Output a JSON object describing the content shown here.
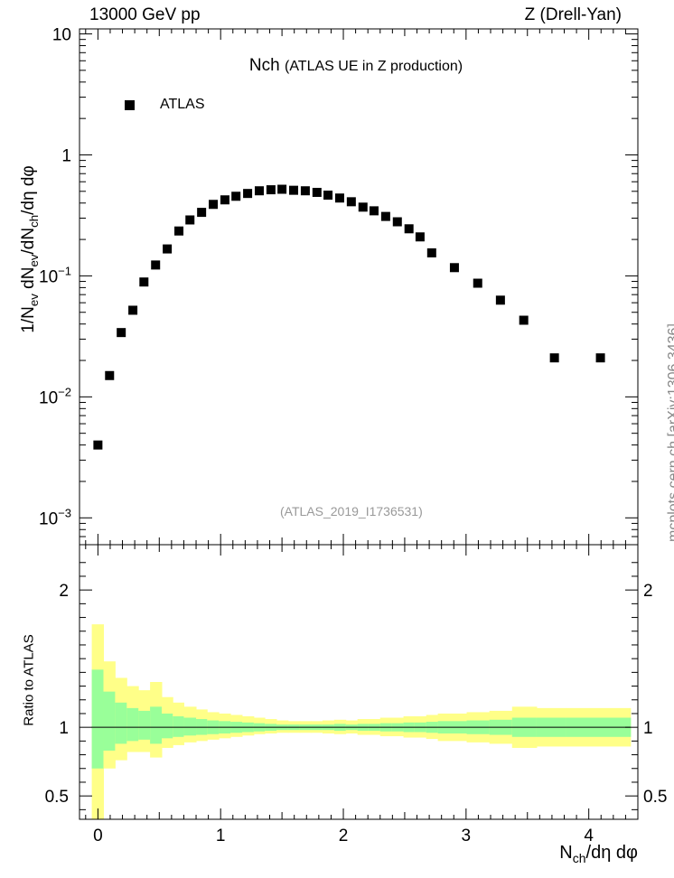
{
  "header": {
    "energy": "13000 GeV pp",
    "process": "Z (Drell-Yan)"
  },
  "title": {
    "main": "Nch",
    "sub": "(ATLAS UE in Z production)"
  },
  "legend": {
    "label": "ATLAS"
  },
  "analysis_id": "(ATLAS_2019_I1736531)",
  "side_label": "mcplots.cern.ch [arXiv:1306.3436]",
  "axes": {
    "ylabel_main": "1/N_ev dN_ev/dN_ch/dη dφ",
    "ylabel_ratio": "Ratio to ATLAS",
    "xlabel": "N_ch/dη dφ"
  },
  "chart_data": [
    {
      "type": "scatter",
      "panel": "main",
      "series": [
        {
          "name": "ATLAS",
          "x": [
            0.0,
            0.095,
            0.19,
            0.285,
            0.375,
            0.47,
            0.565,
            0.66,
            0.75,
            0.845,
            0.94,
            1.035,
            1.125,
            1.22,
            1.315,
            1.41,
            1.5,
            1.595,
            1.69,
            1.785,
            1.875,
            1.97,
            2.065,
            2.16,
            2.25,
            2.345,
            2.44,
            2.535,
            2.625,
            2.72,
            2.905,
            3.095,
            3.28,
            3.47,
            3.72,
            4.095
          ],
          "y": [
            0.004,
            0.015,
            0.034,
            0.052,
            0.089,
            0.123,
            0.167,
            0.235,
            0.29,
            0.335,
            0.39,
            0.425,
            0.455,
            0.48,
            0.505,
            0.515,
            0.52,
            0.51,
            0.505,
            0.49,
            0.465,
            0.44,
            0.41,
            0.37,
            0.345,
            0.31,
            0.28,
            0.245,
            0.21,
            0.155,
            0.117,
            0.087,
            0.063,
            0.043,
            0.021,
            0.021
          ]
        }
      ],
      "xlim": [
        -0.15,
        4.4
      ],
      "ylim": [
        0.0006,
        11
      ],
      "yscale": "log",
      "yticks": [
        "10^-3",
        "10^-2",
        "10^-1",
        "1",
        "10"
      ],
      "xticks": [
        "0",
        "1",
        "2",
        "3",
        "4"
      ],
      "legend_position": "top-left"
    },
    {
      "type": "area",
      "panel": "ratio",
      "reference_line": 1,
      "bins": [
        -0.05,
        0.045,
        0.14,
        0.235,
        0.33,
        0.425,
        0.52,
        0.61,
        0.7,
        0.8,
        0.89,
        0.985,
        1.08,
        1.175,
        1.27,
        1.36,
        1.455,
        1.55,
        1.645,
        1.735,
        1.83,
        1.925,
        2.02,
        2.115,
        2.205,
        2.3,
        2.395,
        2.49,
        2.58,
        2.675,
        2.77,
        3.005,
        3.19,
        3.375,
        3.575,
        3.815,
        4.34
      ],
      "band_1sigma": {
        "up": [
          1.42,
          1.26,
          1.18,
          1.14,
          1.12,
          1.15,
          1.1,
          1.08,
          1.07,
          1.06,
          1.05,
          1.045,
          1.04,
          1.035,
          1.03,
          1.025,
          1.02,
          1.02,
          1.02,
          1.02,
          1.02,
          1.025,
          1.02,
          1.025,
          1.025,
          1.03,
          1.03,
          1.035,
          1.035,
          1.04,
          1.045,
          1.05,
          1.055,
          1.07,
          1.07,
          1.07
        ],
        "down": [
          0.7,
          0.83,
          0.88,
          0.9,
          0.91,
          0.88,
          0.92,
          0.93,
          0.94,
          0.945,
          0.95,
          0.955,
          0.96,
          0.965,
          0.97,
          0.975,
          0.98,
          0.98,
          0.98,
          0.98,
          0.98,
          0.975,
          0.98,
          0.975,
          0.975,
          0.97,
          0.97,
          0.965,
          0.965,
          0.96,
          0.955,
          0.95,
          0.945,
          0.93,
          0.93,
          0.93
        ]
      },
      "band_2sigma": {
        "up": [
          1.75,
          1.48,
          1.36,
          1.3,
          1.27,
          1.33,
          1.22,
          1.18,
          1.15,
          1.13,
          1.11,
          1.1,
          1.09,
          1.08,
          1.07,
          1.06,
          1.05,
          1.045,
          1.045,
          1.045,
          1.05,
          1.055,
          1.05,
          1.06,
          1.06,
          1.07,
          1.07,
          1.08,
          1.08,
          1.09,
          1.1,
          1.11,
          1.12,
          1.15,
          1.14,
          1.14
        ],
        "down": [
          0.32,
          0.7,
          0.76,
          0.82,
          0.82,
          0.78,
          0.85,
          0.87,
          0.89,
          0.9,
          0.91,
          0.92,
          0.93,
          0.94,
          0.95,
          0.955,
          0.96,
          0.96,
          0.96,
          0.96,
          0.955,
          0.95,
          0.955,
          0.945,
          0.945,
          0.935,
          0.935,
          0.925,
          0.925,
          0.915,
          0.9,
          0.89,
          0.88,
          0.85,
          0.86,
          0.86
        ]
      },
      "ylim": [
        0.33,
        2.33
      ],
      "yticks": [
        "0.5",
        "1",
        "2"
      ],
      "xlim": [
        -0.15,
        4.4
      ],
      "colors": {
        "band_1sigma": "#99ff99",
        "band_2sigma": "#ffff88"
      }
    }
  ]
}
